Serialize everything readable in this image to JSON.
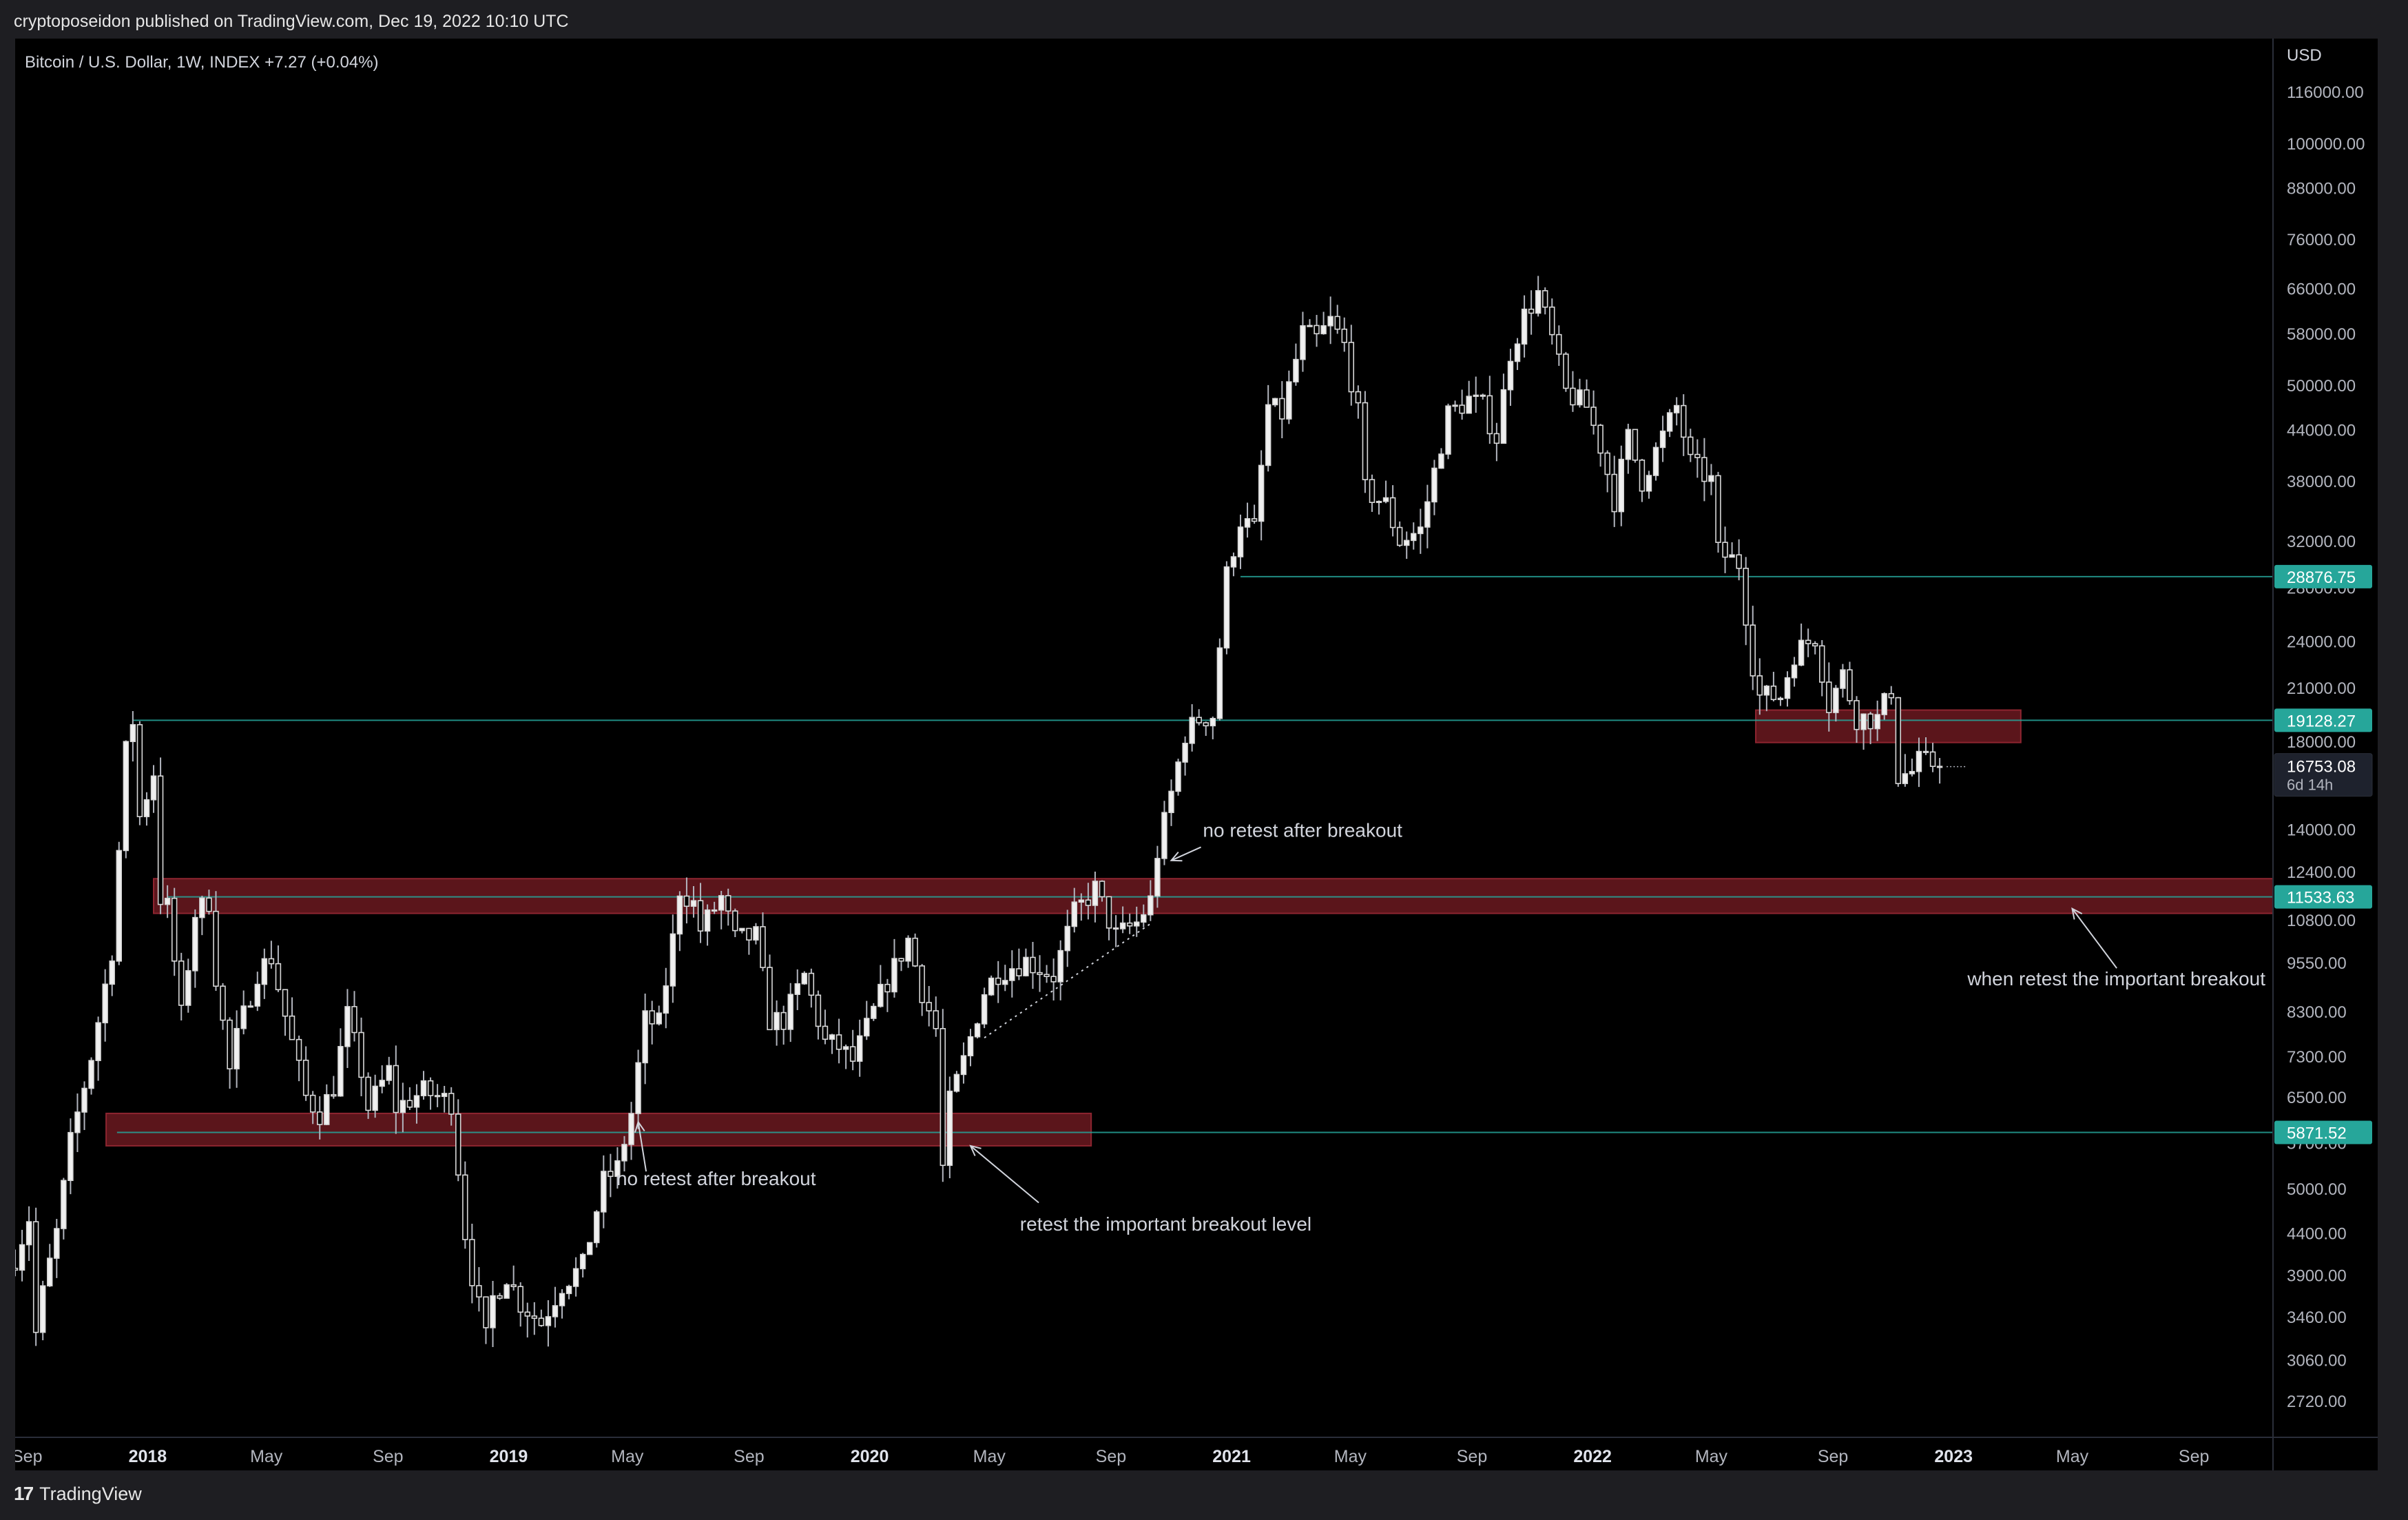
{
  "header": {
    "published_text": "cryptoposeidon published on TradingView.com, Dec 19, 2022 10:10 UTC"
  },
  "footer": {
    "brand_mark": "17",
    "brand_name": "TradingView"
  },
  "chart_data": {
    "type": "candlestick",
    "symbol_line": "Bitcoin / U.S. Dollar, 1W, INDEX  +7.27 (+0.04%)",
    "currency": "USD",
    "scale": "log",
    "y_range": [
      2450,
      135000
    ],
    "x_range": [
      "2017-08-20",
      "2023-11-20"
    ],
    "y_ticks": [
      "116000.00",
      "100000.00",
      "88000.00",
      "76000.00",
      "66000.00",
      "58000.00",
      "50000.00",
      "44000.00",
      "38000.00",
      "32000.00",
      "28000.00",
      "24000.00",
      "21000.00",
      "18000.00",
      "14000.00",
      "12400.00",
      "10800.00",
      "9550.00",
      "8300.00",
      "7300.00",
      "6500.00",
      "5700.00",
      "5000.00",
      "4400.00",
      "3900.00",
      "3460.00",
      "3060.00",
      "2720.00"
    ],
    "x_ticks": [
      {
        "label": "Sep",
        "date": "2017-09-01",
        "bold": false
      },
      {
        "label": "2018",
        "date": "2018-01-01",
        "bold": true
      },
      {
        "label": "May",
        "date": "2018-05-01",
        "bold": false
      },
      {
        "label": "Sep",
        "date": "2018-09-01",
        "bold": false
      },
      {
        "label": "2019",
        "date": "2019-01-01",
        "bold": true
      },
      {
        "label": "May",
        "date": "2019-05-01",
        "bold": false
      },
      {
        "label": "Sep",
        "date": "2019-09-01",
        "bold": false
      },
      {
        "label": "2020",
        "date": "2020-01-01",
        "bold": true
      },
      {
        "label": "May",
        "date": "2020-05-01",
        "bold": false
      },
      {
        "label": "Sep",
        "date": "2020-09-01",
        "bold": false
      },
      {
        "label": "2021",
        "date": "2021-01-01",
        "bold": true
      },
      {
        "label": "May",
        "date": "2021-05-01",
        "bold": false
      },
      {
        "label": "Sep",
        "date": "2021-09-01",
        "bold": false
      },
      {
        "label": "2022",
        "date": "2022-01-01",
        "bold": true
      },
      {
        "label": "May",
        "date": "2022-05-01",
        "bold": false
      },
      {
        "label": "Sep",
        "date": "2022-09-01",
        "bold": false
      },
      {
        "label": "2023",
        "date": "2023-01-01",
        "bold": true
      },
      {
        "label": "May",
        "date": "2023-05-01",
        "bold": false
      },
      {
        "label": "Sep",
        "date": "2023-09-01",
        "bold": false
      }
    ],
    "path_points": [
      [
        "2017-08-20",
        4100
      ],
      [
        "2017-09-03",
        4600
      ],
      [
        "2017-09-10",
        3300
      ],
      [
        "2017-09-17",
        3700
      ],
      [
        "2017-10-01",
        4400
      ],
      [
        "2017-10-15",
        5700
      ],
      [
        "2017-11-05",
        7300
      ],
      [
        "2017-11-26",
        9900
      ],
      [
        "2017-12-10",
        17500
      ],
      [
        "2017-12-17",
        19100
      ],
      [
        "2017-12-24",
        14500
      ],
      [
        "2018-01-07",
        16500
      ],
      [
        "2018-01-14",
        11500
      ],
      [
        "2018-01-21",
        11200
      ],
      [
        "2018-02-04",
        8200
      ],
      [
        "2018-02-18",
        11000
      ],
      [
        "2018-03-04",
        11400
      ],
      [
        "2018-03-11",
        9200
      ],
      [
        "2018-03-25",
        7000
      ],
      [
        "2018-04-01",
        7700
      ],
      [
        "2018-04-22",
        9300
      ],
      [
        "2018-05-06",
        9700
      ],
      [
        "2018-05-20",
        8200
      ],
      [
        "2018-06-10",
        6500
      ],
      [
        "2018-06-24",
        6200
      ],
      [
        "2018-07-08",
        6700
      ],
      [
        "2018-07-22",
        8200
      ],
      [
        "2018-08-05",
        7000
      ],
      [
        "2018-08-12",
        6300
      ],
      [
        "2018-09-02",
        7000
      ],
      [
        "2018-09-09",
        6300
      ],
      [
        "2018-10-07",
        6600
      ],
      [
        "2018-11-04",
        6400
      ],
      [
        "2018-11-18",
        4400
      ],
      [
        "2018-11-25",
        3900
      ],
      [
        "2018-12-09",
        3250
      ],
      [
        "2018-12-16",
        3650
      ],
      [
        "2018-12-30",
        3900
      ],
      [
        "2019-01-13",
        3600
      ],
      [
        "2019-02-03",
        3400
      ],
      [
        "2019-02-24",
        3800
      ],
      [
        "2019-03-17",
        4000
      ],
      [
        "2019-04-07",
        5100
      ],
      [
        "2019-04-21",
        5300
      ],
      [
        "2019-05-05",
        6200
      ],
      [
        "2019-05-19",
        8100
      ],
      [
        "2019-06-02",
        8000
      ],
      [
        "2019-06-16",
        10200
      ],
      [
        "2019-06-23",
        11800
      ],
      [
        "2019-07-07",
        11300
      ],
      [
        "2019-07-14",
        10500
      ],
      [
        "2019-08-04",
        11500
      ],
      [
        "2019-08-18",
        10200
      ],
      [
        "2019-09-08",
        10300
      ],
      [
        "2019-09-22",
        8100
      ],
      [
        "2019-10-06",
        8100
      ],
      [
        "2019-10-27",
        9200
      ],
      [
        "2019-11-17",
        7600
      ],
      [
        "2019-12-01",
        7500
      ],
      [
        "2019-12-15",
        7200
      ],
      [
        "2020-01-12",
        8700
      ],
      [
        "2020-02-09",
        10200
      ],
      [
        "2020-02-23",
        8800
      ],
      [
        "2020-03-08",
        7900
      ],
      [
        "2020-03-15",
        5300
      ],
      [
        "2020-03-22",
        6400
      ],
      [
        "2020-04-05",
        7200
      ],
      [
        "2020-04-26",
        8800
      ],
      [
        "2020-05-10",
        9300
      ],
      [
        "2020-06-07",
        9600
      ],
      [
        "2020-07-05",
        9200
      ],
      [
        "2020-07-26",
        11000
      ],
      [
        "2020-08-16",
        11800
      ],
      [
        "2020-09-06",
        10300
      ],
      [
        "2020-09-27",
        10700
      ],
      [
        "2020-10-11",
        11400
      ],
      [
        "2020-10-18",
        13100
      ],
      [
        "2020-11-01",
        15500
      ],
      [
        "2020-11-15",
        18400
      ],
      [
        "2020-11-29",
        19200
      ],
      [
        "2020-12-13",
        19400
      ],
      [
        "2020-12-20",
        23700
      ],
      [
        "2020-12-27",
        29000
      ],
      [
        "2021-01-10",
        34000
      ],
      [
        "2021-01-24",
        33000
      ],
      [
        "2021-02-07",
        47000
      ],
      [
        "2021-02-21",
        46000
      ],
      [
        "2021-03-14",
        58000
      ],
      [
        "2021-03-28",
        57000
      ],
      [
        "2021-04-11",
        60000
      ],
      [
        "2021-04-25",
        56000
      ],
      [
        "2021-05-09",
        46000
      ],
      [
        "2021-05-16",
        37000
      ],
      [
        "2021-06-06",
        35500
      ],
      [
        "2021-06-20",
        32000
      ],
      [
        "2021-07-11",
        33000
      ],
      [
        "2021-07-25",
        39000
      ],
      [
        "2021-08-08",
        46000
      ],
      [
        "2021-08-29",
        48000
      ],
      [
        "2021-09-12",
        47000
      ],
      [
        "2021-09-26",
        43000
      ],
      [
        "2021-10-10",
        55000
      ],
      [
        "2021-10-24",
        61000
      ],
      [
        "2021-11-07",
        65000
      ],
      [
        "2021-11-21",
        57000
      ],
      [
        "2021-12-05",
        49000
      ],
      [
        "2021-12-26",
        47000
      ],
      [
        "2022-01-09",
        42000
      ],
      [
        "2022-01-23",
        36000
      ],
      [
        "2022-02-06",
        43000
      ],
      [
        "2022-02-20",
        38000
      ],
      [
        "2022-03-27",
        47000
      ],
      [
        "2022-04-10",
        40000
      ],
      [
        "2022-05-01",
        38000
      ],
      [
        "2022-05-08",
        31000
      ],
      [
        "2022-05-29",
        30000
      ],
      [
        "2022-06-12",
        22500
      ],
      [
        "2022-06-19",
        20500
      ],
      [
        "2022-07-10",
        20500
      ],
      [
        "2022-07-24",
        23200
      ],
      [
        "2022-08-14",
        24300
      ],
      [
        "2022-08-28",
        20000
      ],
      [
        "2022-09-11",
        21800
      ],
      [
        "2022-09-25",
        19300
      ],
      [
        "2022-10-16",
        19200
      ],
      [
        "2022-10-30",
        20900
      ],
      [
        "2022-11-06",
        16300
      ],
      [
        "2022-11-20",
        16500
      ],
      [
        "2022-11-27",
        17000
      ],
      [
        "2022-12-11",
        16900
      ],
      [
        "2022-12-18",
        16753
      ]
    ],
    "horizontal_lines": [
      {
        "price": 28876.75,
        "label": "28876.75",
        "from": "2021-01-10",
        "color": "#26a69a"
      },
      {
        "price": 19128.27,
        "label": "19128.27",
        "from": "2017-12-17",
        "color": "#26a69a"
      },
      {
        "price": 11533.63,
        "label": "11533.63",
        "from": "2018-01-21",
        "color": "#26a69a"
      },
      {
        "price": 5871.52,
        "label": "5871.52",
        "from": "2017-12-01",
        "color": "#26a69a"
      }
    ],
    "zones": [
      {
        "from": "2018-01-07",
        "to": "2023-12-31",
        "low": 11000,
        "high": 12150
      },
      {
        "from": "2017-11-20",
        "to": "2020-08-12",
        "low": 5650,
        "high": 6200
      },
      {
        "from": "2022-06-15",
        "to": "2023-03-10",
        "low": 17950,
        "high": 19700
      }
    ],
    "last_price": {
      "value": 16753.08,
      "label": "16753.08",
      "countdown": "6d 14h"
    },
    "annotations": [
      {
        "text": "no retest after breakout",
        "date": "2020-12-03",
        "price": 13700,
        "arrow_from": [
          "2020-12-01",
          13300
        ],
        "arrow_to": [
          "2020-11-01",
          12800
        ]
      },
      {
        "text": "no retest after breakout",
        "date": "2019-04-20",
        "price": 5050,
        "arrow_from": [
          "2019-05-20",
          5250
        ],
        "arrow_to": [
          "2019-05-12",
          6050
        ]
      },
      {
        "text": "retest the important breakout level",
        "date": "2020-06-01",
        "price": 4430,
        "arrow_from": [
          "2020-06-20",
          4800
        ],
        "arrow_to": [
          "2020-04-12",
          5650
        ]
      },
      {
        "text": "when retest the important breakout",
        "date": "2023-01-15",
        "price": 8950,
        "arrow_from": [
          "2023-06-15",
          9400
        ],
        "arrow_to": [
          "2023-05-01",
          11150
        ]
      }
    ],
    "dotted_trendline": {
      "from": [
        "2020-04-26",
        7700
      ],
      "to": [
        "2020-10-12",
        10700
      ]
    }
  }
}
